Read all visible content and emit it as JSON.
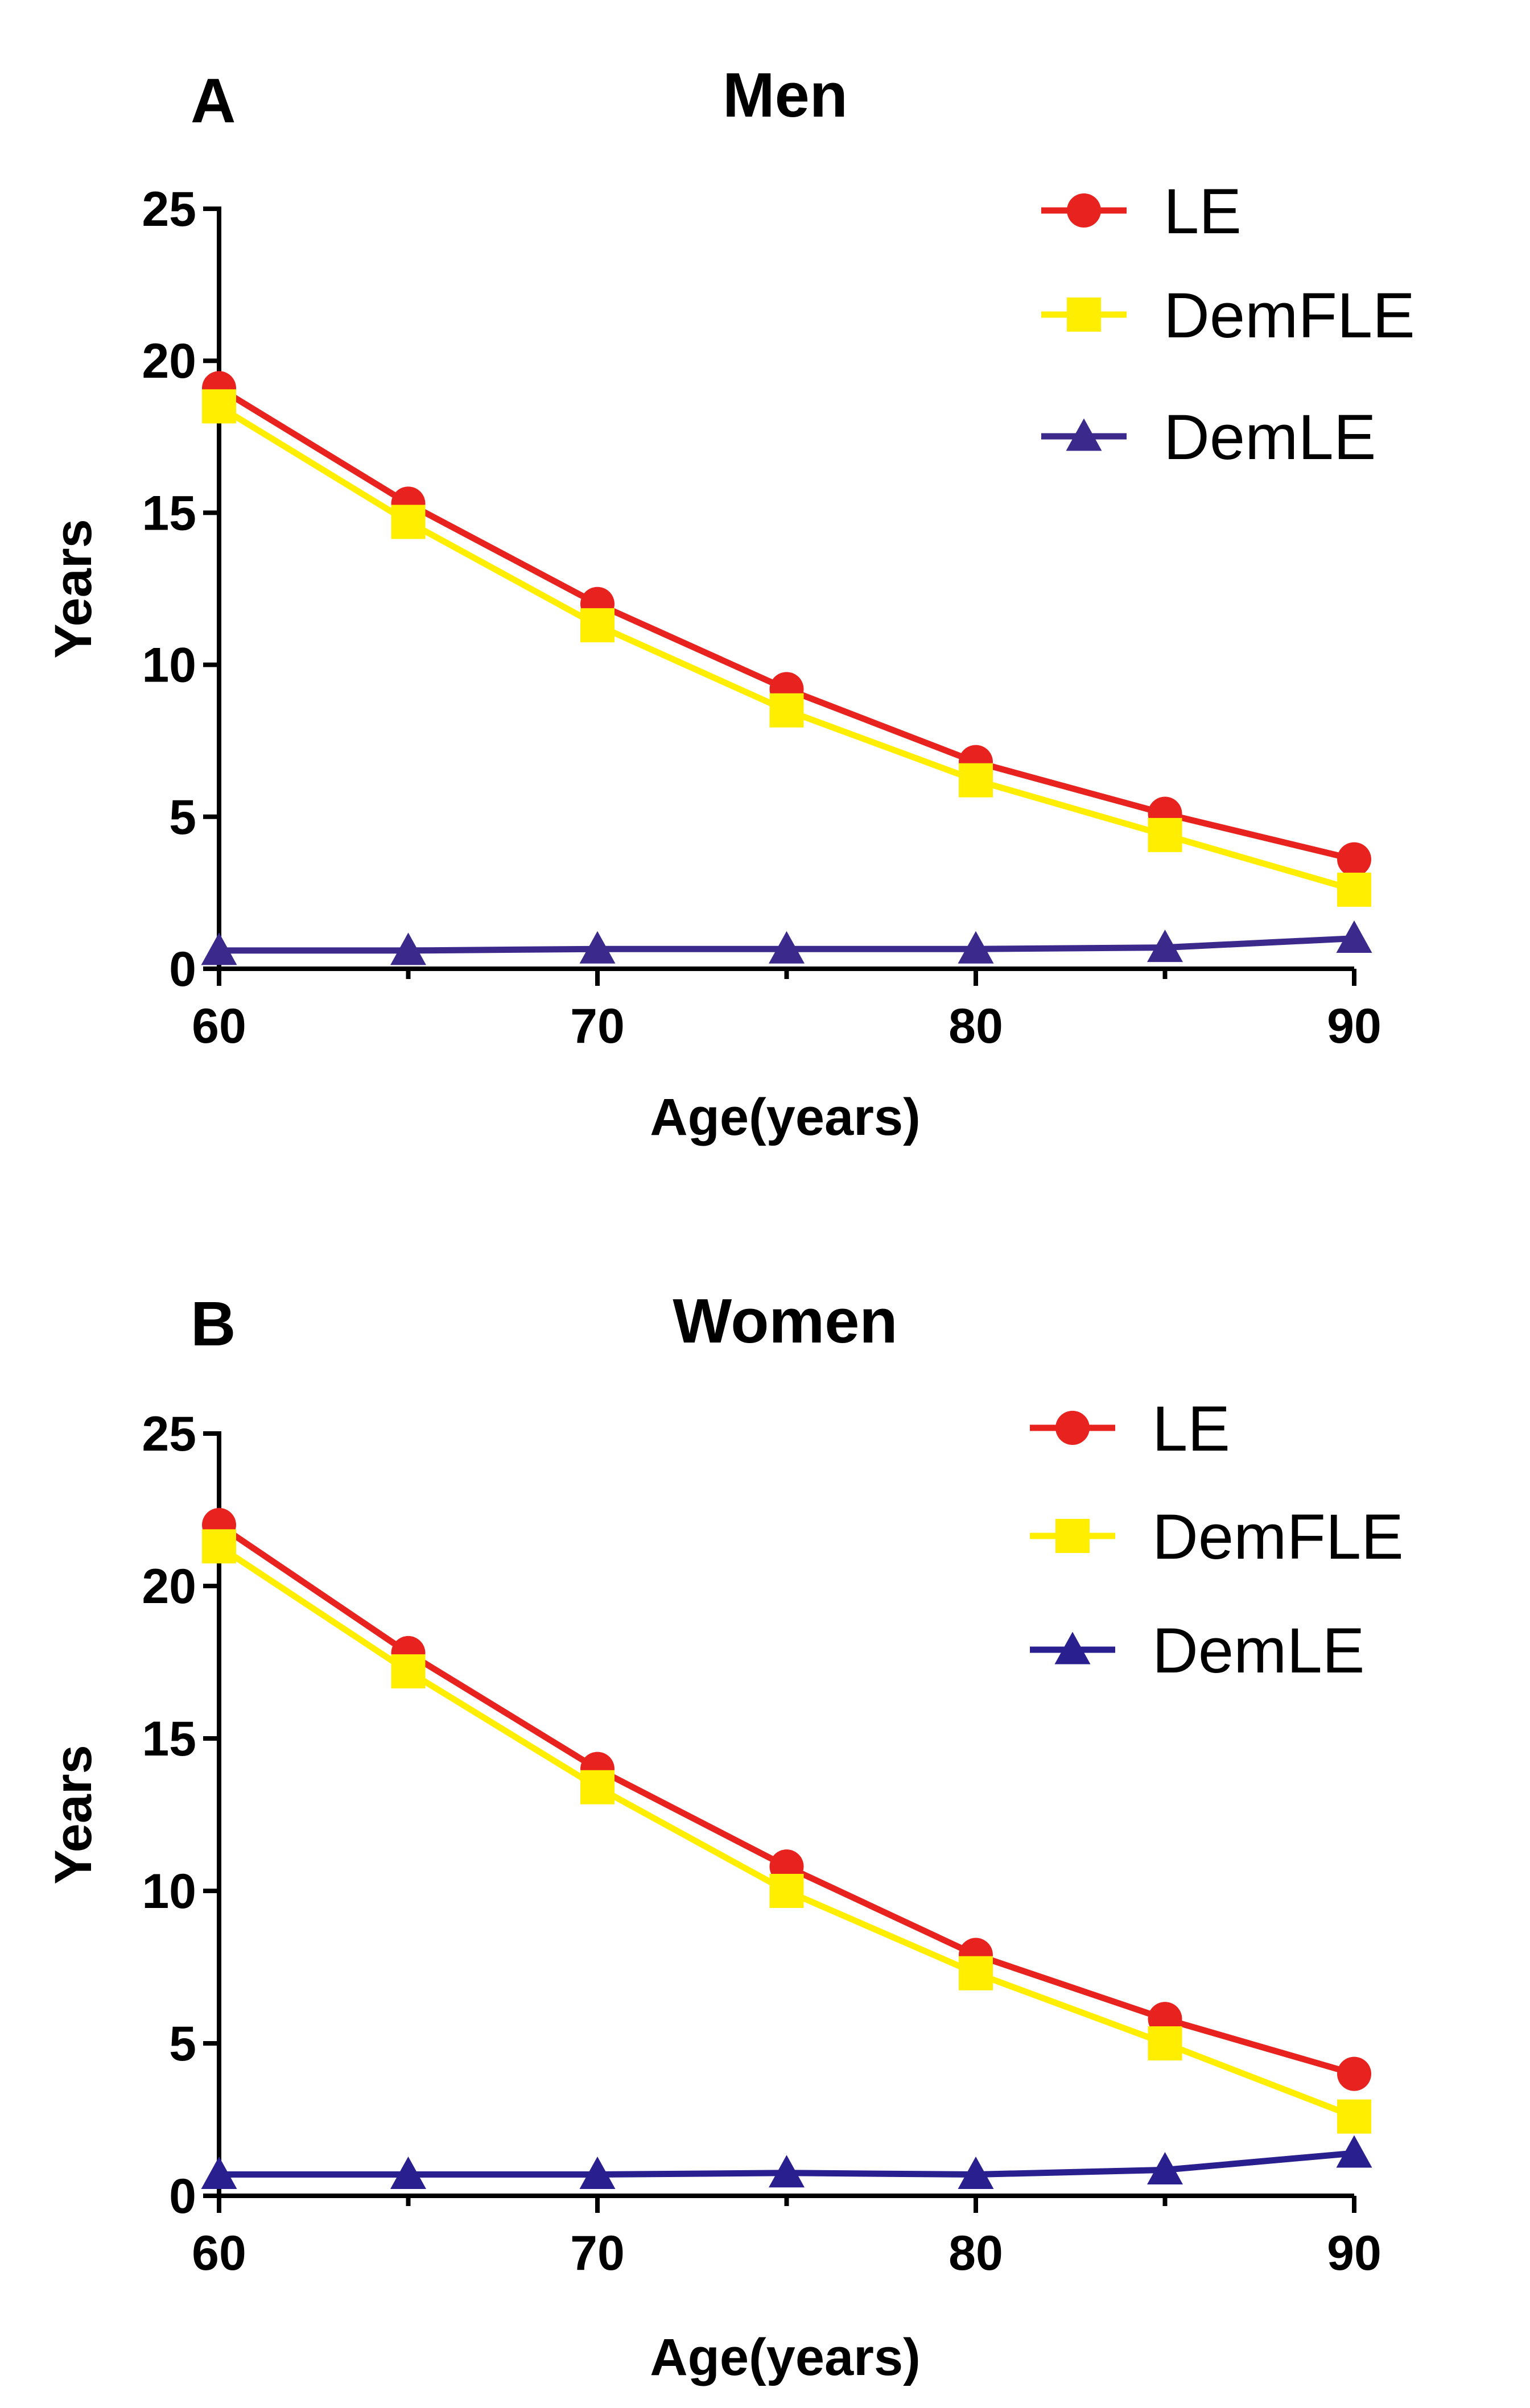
{
  "chart_data": [
    {
      "type": "line",
      "panel": "A",
      "title": "Men",
      "xlabel": "Age(years)",
      "ylabel": "Years",
      "xlim": [
        60,
        90
      ],
      "ylim": [
        0,
        25
      ],
      "xticks": [
        "60",
        "70",
        "80",
        "90"
      ],
      "yticks": [
        "0",
        "5",
        "10",
        "15",
        "20",
        "25"
      ],
      "x": [
        60,
        65,
        70,
        75,
        80,
        85,
        90
      ],
      "legend": "top-right",
      "series": [
        {
          "name": "LE",
          "color": "#e8231f",
          "marker": "circle",
          "values": [
            19.1,
            15.3,
            12.0,
            9.2,
            6.8,
            5.1,
            3.6
          ]
        },
        {
          "name": "DemFLE",
          "color": "#ffee00",
          "marker": "square",
          "values": [
            18.5,
            14.7,
            11.3,
            8.5,
            6.2,
            4.4,
            2.6
          ]
        },
        {
          "name": "DemLE",
          "color": "#3b2a8c",
          "marker": "triangle",
          "values": [
            0.6,
            0.6,
            0.65,
            0.65,
            0.65,
            0.7,
            1.0
          ]
        }
      ]
    },
    {
      "type": "line",
      "panel": "B",
      "title": "Women",
      "xlabel": "Age(years)",
      "ylabel": "Years",
      "xlim": [
        60,
        90
      ],
      "ylim": [
        0,
        25
      ],
      "xticks": [
        "60",
        "70",
        "80",
        "90"
      ],
      "yticks": [
        "0",
        "5",
        "10",
        "15",
        "20",
        "25"
      ],
      "x": [
        60,
        65,
        70,
        75,
        80,
        85,
        90
      ],
      "legend": "top-right",
      "series": [
        {
          "name": "LE",
          "color": "#e8231f",
          "marker": "circle",
          "values": [
            22.0,
            17.8,
            14.0,
            10.8,
            7.9,
            5.8,
            4.0
          ]
        },
        {
          "name": "DemFLE",
          "color": "#ffee00",
          "marker": "square",
          "values": [
            21.3,
            17.2,
            13.4,
            10.0,
            7.3,
            5.0,
            2.6
          ]
        },
        {
          "name": "DemLE",
          "color": "#2a1f8e",
          "marker": "triangle",
          "values": [
            0.7,
            0.7,
            0.7,
            0.75,
            0.7,
            0.85,
            1.4
          ]
        }
      ]
    }
  ]
}
